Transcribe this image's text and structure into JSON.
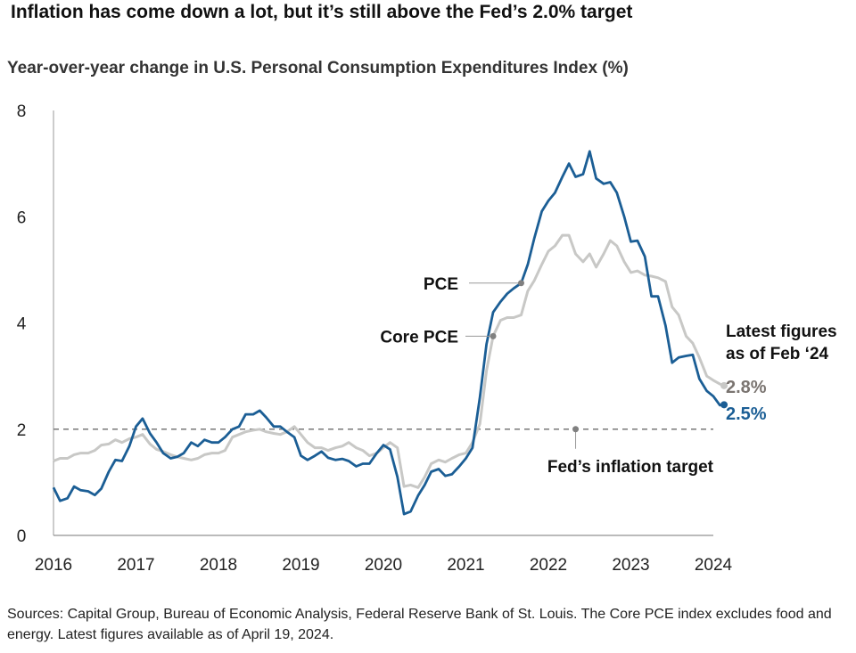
{
  "title": "Inflation has come down a lot, but it’s still above the Fed’s 2.0% target",
  "subtitle": "Year-over-year change in U.S. Personal Consumption Expenditures Index (%)",
  "footer": "Sources: Capital Group, Bureau of Economic Analysis, Federal Reserve Bank of St. Louis. The Core PCE index excludes food and energy. Latest figures available as of April 19, 2024.",
  "colors": {
    "pce": "#1b5e95",
    "core": "#c8c8c6",
    "target": "#777777",
    "core_label": "#7a7470"
  },
  "chart_data": {
    "type": "line",
    "xlim": [
      2016,
      2024
    ],
    "ylim": [
      0,
      8
    ],
    "x_ticks": [
      2016,
      2017,
      2018,
      2019,
      2020,
      2021,
      2022,
      2023,
      2024
    ],
    "y_ticks": [
      0,
      2,
      4,
      6,
      8
    ],
    "grid": false,
    "target": {
      "value": 2.0,
      "label": "Fed’s inflation target"
    },
    "latest_note": [
      "Latest figures",
      "as of Feb ‘24"
    ],
    "series": [
      {
        "name": "PCE",
        "label_value": "2.5%",
        "points": [
          [
            2016.0,
            0.9
          ],
          [
            2016.08,
            0.65
          ],
          [
            2016.17,
            0.7
          ],
          [
            2016.25,
            0.92
          ],
          [
            2016.33,
            0.85
          ],
          [
            2016.42,
            0.83
          ],
          [
            2016.5,
            0.76
          ],
          [
            2016.58,
            0.88
          ],
          [
            2016.67,
            1.2
          ],
          [
            2016.75,
            1.42
          ],
          [
            2016.83,
            1.4
          ],
          [
            2016.92,
            1.68
          ],
          [
            2017.0,
            2.05
          ],
          [
            2017.08,
            2.2
          ],
          [
            2017.17,
            1.92
          ],
          [
            2017.25,
            1.75
          ],
          [
            2017.33,
            1.55
          ],
          [
            2017.42,
            1.45
          ],
          [
            2017.5,
            1.48
          ],
          [
            2017.58,
            1.55
          ],
          [
            2017.67,
            1.75
          ],
          [
            2017.75,
            1.68
          ],
          [
            2017.83,
            1.8
          ],
          [
            2017.92,
            1.75
          ],
          [
            2018.0,
            1.75
          ],
          [
            2018.08,
            1.85
          ],
          [
            2018.17,
            2.0
          ],
          [
            2018.25,
            2.05
          ],
          [
            2018.33,
            2.28
          ],
          [
            2018.42,
            2.28
          ],
          [
            2018.5,
            2.35
          ],
          [
            2018.58,
            2.22
          ],
          [
            2018.67,
            2.05
          ],
          [
            2018.75,
            2.05
          ],
          [
            2018.83,
            1.95
          ],
          [
            2018.92,
            1.85
          ],
          [
            2019.0,
            1.5
          ],
          [
            2019.08,
            1.42
          ],
          [
            2019.17,
            1.5
          ],
          [
            2019.25,
            1.58
          ],
          [
            2019.33,
            1.46
          ],
          [
            2019.42,
            1.42
          ],
          [
            2019.5,
            1.44
          ],
          [
            2019.58,
            1.4
          ],
          [
            2019.67,
            1.3
          ],
          [
            2019.75,
            1.35
          ],
          [
            2019.83,
            1.35
          ],
          [
            2019.92,
            1.55
          ],
          [
            2020.0,
            1.7
          ],
          [
            2020.08,
            1.62
          ],
          [
            2020.17,
            1.1
          ],
          [
            2020.25,
            0.4
          ],
          [
            2020.33,
            0.45
          ],
          [
            2020.42,
            0.75
          ],
          [
            2020.5,
            0.95
          ],
          [
            2020.58,
            1.2
          ],
          [
            2020.67,
            1.25
          ],
          [
            2020.75,
            1.12
          ],
          [
            2020.83,
            1.15
          ],
          [
            2020.92,
            1.3
          ],
          [
            2021.0,
            1.45
          ],
          [
            2021.08,
            1.65
          ],
          [
            2021.17,
            2.6
          ],
          [
            2021.25,
            3.6
          ],
          [
            2021.33,
            4.2
          ],
          [
            2021.42,
            4.4
          ],
          [
            2021.5,
            4.55
          ],
          [
            2021.58,
            4.65
          ],
          [
            2021.67,
            4.75
          ],
          [
            2021.75,
            5.1
          ],
          [
            2021.83,
            5.6
          ],
          [
            2021.92,
            6.1
          ],
          [
            2022.0,
            6.3
          ],
          [
            2022.08,
            6.45
          ],
          [
            2022.17,
            6.75
          ],
          [
            2022.25,
            7.0
          ],
          [
            2022.33,
            6.75
          ],
          [
            2022.42,
            6.8
          ],
          [
            2022.5,
            7.23
          ],
          [
            2022.58,
            6.72
          ],
          [
            2022.67,
            6.62
          ],
          [
            2022.75,
            6.65
          ],
          [
            2022.83,
            6.45
          ],
          [
            2022.92,
            6.0
          ],
          [
            2023.0,
            5.53
          ],
          [
            2023.08,
            5.55
          ],
          [
            2023.17,
            5.25
          ],
          [
            2023.25,
            4.5
          ],
          [
            2023.33,
            4.5
          ],
          [
            2023.42,
            3.95
          ],
          [
            2023.5,
            3.25
          ],
          [
            2023.58,
            3.35
          ],
          [
            2023.67,
            3.38
          ],
          [
            2023.75,
            3.4
          ],
          [
            2023.83,
            2.95
          ],
          [
            2023.92,
            2.72
          ],
          [
            2024.0,
            2.62
          ],
          [
            2024.08,
            2.45
          ],
          [
            2024.13,
            2.46
          ]
        ]
      },
      {
        "name": "Core PCE",
        "label_value": "2.8%",
        "points": [
          [
            2016.0,
            1.4
          ],
          [
            2016.08,
            1.45
          ],
          [
            2016.17,
            1.45
          ],
          [
            2016.25,
            1.52
          ],
          [
            2016.33,
            1.55
          ],
          [
            2016.42,
            1.55
          ],
          [
            2016.5,
            1.6
          ],
          [
            2016.58,
            1.7
          ],
          [
            2016.67,
            1.72
          ],
          [
            2016.75,
            1.8
          ],
          [
            2016.83,
            1.75
          ],
          [
            2016.92,
            1.82
          ],
          [
            2017.0,
            1.85
          ],
          [
            2017.08,
            1.9
          ],
          [
            2017.17,
            1.72
          ],
          [
            2017.25,
            1.62
          ],
          [
            2017.33,
            1.58
          ],
          [
            2017.42,
            1.52
          ],
          [
            2017.5,
            1.48
          ],
          [
            2017.58,
            1.45
          ],
          [
            2017.67,
            1.42
          ],
          [
            2017.75,
            1.45
          ],
          [
            2017.83,
            1.52
          ],
          [
            2017.92,
            1.55
          ],
          [
            2018.0,
            1.55
          ],
          [
            2018.08,
            1.6
          ],
          [
            2018.17,
            1.85
          ],
          [
            2018.25,
            1.9
          ],
          [
            2018.33,
            1.95
          ],
          [
            2018.42,
            1.98
          ],
          [
            2018.5,
            2.0
          ],
          [
            2018.58,
            1.95
          ],
          [
            2018.67,
            1.92
          ],
          [
            2018.75,
            1.9
          ],
          [
            2018.83,
            1.95
          ],
          [
            2018.92,
            2.05
          ],
          [
            2019.0,
            1.9
          ],
          [
            2019.08,
            1.75
          ],
          [
            2019.17,
            1.65
          ],
          [
            2019.25,
            1.65
          ],
          [
            2019.33,
            1.6
          ],
          [
            2019.42,
            1.65
          ],
          [
            2019.5,
            1.68
          ],
          [
            2019.58,
            1.75
          ],
          [
            2019.67,
            1.65
          ],
          [
            2019.75,
            1.6
          ],
          [
            2019.83,
            1.5
          ],
          [
            2019.92,
            1.55
          ],
          [
            2020.0,
            1.65
          ],
          [
            2020.08,
            1.75
          ],
          [
            2020.17,
            1.65
          ],
          [
            2020.25,
            0.92
          ],
          [
            2020.33,
            0.95
          ],
          [
            2020.42,
            0.9
          ],
          [
            2020.5,
            1.1
          ],
          [
            2020.58,
            1.35
          ],
          [
            2020.67,
            1.42
          ],
          [
            2020.75,
            1.38
          ],
          [
            2020.83,
            1.45
          ],
          [
            2020.92,
            1.52
          ],
          [
            2021.0,
            1.55
          ],
          [
            2021.08,
            1.75
          ],
          [
            2021.17,
            2.1
          ],
          [
            2021.25,
            3.1
          ],
          [
            2021.33,
            3.75
          ],
          [
            2021.42,
            4.05
          ],
          [
            2021.5,
            4.1
          ],
          [
            2021.58,
            4.1
          ],
          [
            2021.67,
            4.15
          ],
          [
            2021.75,
            4.6
          ],
          [
            2021.83,
            4.8
          ],
          [
            2021.92,
            5.1
          ],
          [
            2022.0,
            5.35
          ],
          [
            2022.08,
            5.45
          ],
          [
            2022.17,
            5.65
          ],
          [
            2022.25,
            5.65
          ],
          [
            2022.33,
            5.3
          ],
          [
            2022.42,
            5.15
          ],
          [
            2022.5,
            5.3
          ],
          [
            2022.58,
            5.05
          ],
          [
            2022.67,
            5.3
          ],
          [
            2022.75,
            5.55
          ],
          [
            2022.83,
            5.45
          ],
          [
            2022.92,
            5.15
          ],
          [
            2023.0,
            4.95
          ],
          [
            2023.08,
            4.98
          ],
          [
            2023.17,
            4.9
          ],
          [
            2023.25,
            4.88
          ],
          [
            2023.33,
            4.85
          ],
          [
            2023.42,
            4.78
          ],
          [
            2023.5,
            4.3
          ],
          [
            2023.58,
            4.15
          ],
          [
            2023.67,
            3.75
          ],
          [
            2023.75,
            3.62
          ],
          [
            2023.83,
            3.35
          ],
          [
            2023.92,
            3.0
          ],
          [
            2024.0,
            2.92
          ],
          [
            2024.08,
            2.85
          ],
          [
            2024.13,
            2.82
          ]
        ]
      }
    ]
  }
}
